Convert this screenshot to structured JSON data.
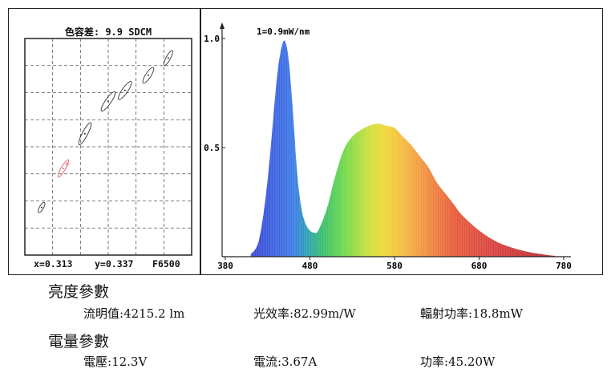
{
  "chart_data": [
    {
      "type": "scatter",
      "title": "色容差:  9.9 SDCM",
      "footer": {
        "x_label": "x=0.313",
        "y_label": "y=0.337",
        "ref_label": "F6500"
      },
      "grid": true,
      "ellipses": [
        {
          "cx": 0.1,
          "cy": 0.22,
          "rx": 0.035,
          "ry": 0.012,
          "angle": 60,
          "color": "#333333"
        },
        {
          "cx": 0.23,
          "cy": 0.4,
          "rx": 0.06,
          "ry": 0.013,
          "angle": 60,
          "color": "#e06060"
        },
        {
          "cx": 0.36,
          "cy": 0.56,
          "rx": 0.075,
          "ry": 0.016,
          "angle": 62,
          "color": "#333333"
        },
        {
          "cx": 0.5,
          "cy": 0.71,
          "rx": 0.07,
          "ry": 0.017,
          "angle": 55,
          "color": "#333333"
        },
        {
          "cx": 0.6,
          "cy": 0.76,
          "rx": 0.065,
          "ry": 0.017,
          "angle": 55,
          "color": "#333333"
        },
        {
          "cx": 0.74,
          "cy": 0.83,
          "rx": 0.055,
          "ry": 0.016,
          "angle": 57,
          "color": "#333333"
        },
        {
          "cx": 0.86,
          "cy": 0.91,
          "rx": 0.05,
          "ry": 0.013,
          "angle": 62,
          "color": "#333333"
        }
      ],
      "marker": {
        "x": 0.25,
        "y": 0.42,
        "color": "#e06060"
      }
    },
    {
      "type": "area",
      "annotation": "1=0.9mW/nm",
      "x_ticks": [
        "380",
        "480",
        "580",
        "680",
        "780"
      ],
      "y_ticks": [
        "1.0",
        "0.5"
      ],
      "xlim": [
        380,
        780
      ],
      "ylim": [
        0,
        1.0
      ],
      "x": [
        410,
        420,
        430,
        440,
        445,
        450,
        455,
        460,
        465,
        470,
        475,
        480,
        485,
        490,
        500,
        510,
        520,
        530,
        540,
        550,
        560,
        570,
        580,
        590,
        600,
        610,
        620,
        630,
        640,
        650,
        660,
        680,
        700,
        720,
        740,
        760,
        770
      ],
      "values": [
        0.01,
        0.08,
        0.35,
        0.78,
        0.93,
        0.99,
        0.9,
        0.66,
        0.38,
        0.22,
        0.15,
        0.12,
        0.11,
        0.12,
        0.22,
        0.37,
        0.49,
        0.55,
        0.58,
        0.6,
        0.61,
        0.6,
        0.59,
        0.55,
        0.51,
        0.46,
        0.41,
        0.34,
        0.29,
        0.24,
        0.19,
        0.12,
        0.07,
        0.04,
        0.02,
        0.008,
        0.004
      ]
    }
  ],
  "sections": {
    "luminance": {
      "title": "亮度參數",
      "items": [
        {
          "label": "流明值:",
          "value": "4215.2 lm"
        },
        {
          "label": "光效率:",
          "value": "82.99m/W"
        },
        {
          "label": "輻射功率:",
          "value": "18.8mW"
        }
      ]
    },
    "electrical": {
      "title": "電量參數",
      "items": [
        {
          "label": "電壓:",
          "value": "12.3V"
        },
        {
          "label": "電流:",
          "value": "3.67A"
        },
        {
          "label": "功率:",
          "value": "45.20W"
        }
      ]
    }
  }
}
